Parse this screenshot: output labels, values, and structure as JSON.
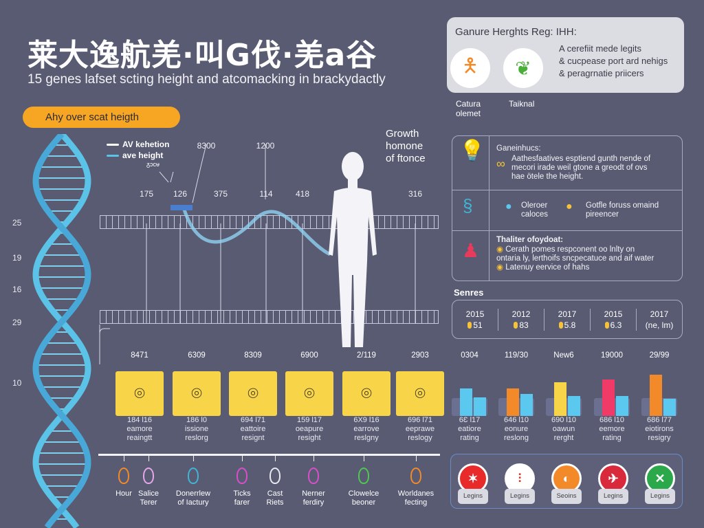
{
  "header": {
    "title": "莱大逸航羌·叫G伐·羌a谷",
    "subtitle": "15 genes lafset scting height and atcomacking in brackydactly",
    "pill": "Ahy over scat heigth"
  },
  "axis_left": [
    "25",
    "19",
    "16",
    "29",
    "10"
  ],
  "legend": {
    "items": [
      {
        "label": "AV kehetion",
        "color": "#ffffff"
      },
      {
        "label": "ave height",
        "color": "#5bc3e8"
      }
    ],
    "note": "ᵹᴐᴄᵾ"
  },
  "ruler": {
    "top_labels": [
      "8300",
      "1200"
    ],
    "ticks": [
      "175",
      "126",
      "375",
      "114",
      "418",
      "316"
    ]
  },
  "growth": [
    "Growth",
    "homone",
    "of ftonce"
  ],
  "card": {
    "heading": "Ganure Herghts Reg: IHH:",
    "lines": [
      "A cerefiit mede legits",
      "& cucpease port ard nehigs",
      "& peragrnatie priicers"
    ],
    "captions": [
      [
        "Catura",
        "olemet"
      ],
      [
        "Taiknal"
      ]
    ]
  },
  "table": {
    "row1": {
      "heading": "Ganeinhucs:",
      "text": [
        "Aathesfaatives esptiend gunth nende of",
        "mecori irade weil gtone a greodt of ovs",
        "hae ötele the height."
      ]
    },
    "row2": {
      "a": [
        "Oleroer",
        "caloces"
      ],
      "b": [
        "Gotfle foruss omaind",
        "pireencer"
      ]
    },
    "row3": {
      "heading": "Thaliter ofoydoat:",
      "text": [
        "Cerath pomes respconent oo lnlty on",
        "ontaria ly, lerthoifs sncpecatuce and aif water",
        "Latenuy eervice of hahs"
      ]
    }
  },
  "series": {
    "label": "Senres",
    "items": [
      {
        "year": "2015",
        "val": "51"
      },
      {
        "year": "2012",
        "val": "83"
      },
      {
        "year": "2017",
        "val": "5.8"
      },
      {
        "year": "2015",
        "val": "6.3"
      },
      {
        "year": "2017",
        "val": "(ne, lm)"
      }
    ]
  },
  "values_row": [
    "8471",
    "6309",
    "8309",
    "6900",
    "2/119",
    "2903",
    "0304",
    "119/30",
    "New6",
    "19000",
    "29/99"
  ],
  "items": [
    [
      "184 l16",
      "eamore",
      "reaingtt"
    ],
    [
      "186 l0",
      "issione",
      "reslorg"
    ],
    [
      "694 l71",
      "eattoire",
      "resignt"
    ],
    [
      "159 l17",
      "oeapure",
      "resight"
    ],
    [
      "6X9 l16",
      "earrove",
      "reslgny"
    ],
    [
      "696 l71",
      "eeprawe",
      "reslogy"
    ],
    [
      "6Ɛ l17",
      "eatiore",
      "rating"
    ],
    [
      "646 l10",
      "eonure",
      "reslong"
    ],
    [
      "690 l10",
      "oawun",
      "rerght"
    ],
    [
      "686 l10",
      "eemore",
      "rating"
    ],
    [
      "686 l77",
      "eiotirons",
      "resigry"
    ]
  ],
  "mini_bars": [
    {
      "a": 0.62,
      "b": 0.42,
      "ca": "#5bc8f0",
      "cb": "#5bc8f0"
    },
    {
      "a": 0.62,
      "b": 0.5,
      "ca": "#f28a2a",
      "cb": "#5bc8f0"
    },
    {
      "a": 0.75,
      "b": 0.45,
      "ca": "#f8d548",
      "cb": "#5bc8f0"
    },
    {
      "a": 0.82,
      "b": 0.45,
      "ca": "#f03a68",
      "cb": "#5bc8f0"
    },
    {
      "a": 0.92,
      "b": 0.38,
      "ca": "#f28a2a",
      "cb": "#5bc8f0"
    }
  ],
  "timeline": [
    {
      "l": [
        "Hour"
      ],
      "c": "#f28a2a"
    },
    {
      "l": [
        "Salice",
        "Terer"
      ],
      "c": "#e6a6e8"
    },
    {
      "l": [
        "Donerrlew",
        "of Iactury"
      ],
      "c": "#3fb6d6"
    },
    {
      "l": [
        "Ticks",
        "farer"
      ],
      "c": "#d84fc8"
    },
    {
      "l": [
        "Cast",
        "Riets"
      ],
      "c": "#e8e8ee"
    },
    {
      "l": [
        "Nerner",
        "ferdiry"
      ],
      "c": "#d84fc8"
    },
    {
      "l": [
        "Clowelce",
        "beoner"
      ],
      "c": "#4fc84f"
    },
    {
      "l": [
        "Worldanes",
        "fecting"
      ],
      "c": "#f28a2a"
    }
  ],
  "badges": [
    {
      "label": "Legins",
      "bg": "#e82a2a",
      "g": "✶"
    },
    {
      "label": "Legins",
      "bg": "#ffffff",
      "g": "⫶"
    },
    {
      "label": "Seoins",
      "bg": "#f28a2a",
      "g": "◐"
    },
    {
      "label": "Legins",
      "bg": "#d82a3a",
      "g": "✈"
    },
    {
      "label": "Legins",
      "bg": "#2aa84a",
      "g": "✕"
    }
  ]
}
